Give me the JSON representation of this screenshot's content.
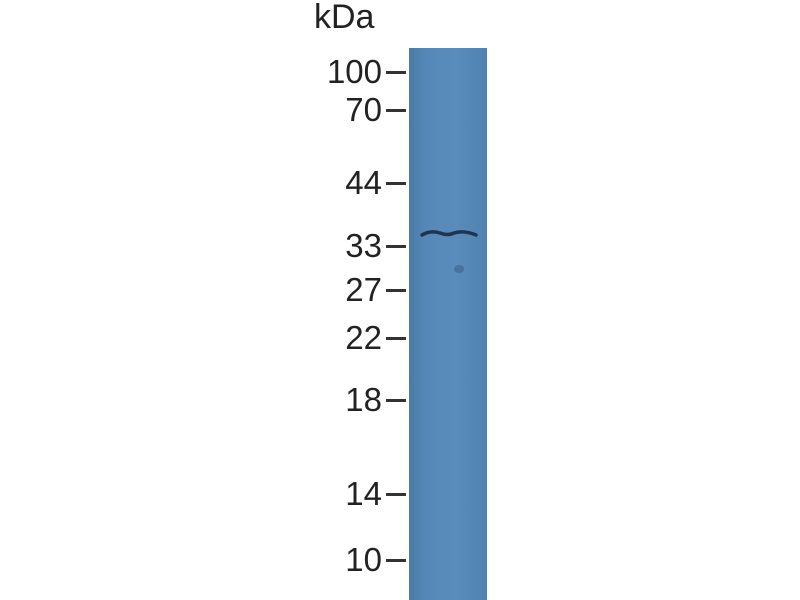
{
  "unit_label": "kDa",
  "markers": [
    {
      "label": "100",
      "kda": 100
    },
    {
      "label": "70",
      "kda": 70
    },
    {
      "label": "44",
      "kda": 44
    },
    {
      "label": "33",
      "kda": 33
    },
    {
      "label": "27",
      "kda": 27
    },
    {
      "label": "22",
      "kda": 22
    },
    {
      "label": "18",
      "kda": 18
    },
    {
      "label": "14",
      "kda": 14
    },
    {
      "label": "10",
      "kda": 10
    }
  ],
  "lane_color": "#5588b8",
  "band": {
    "approx_kda": 35,
    "color": "#1e3550"
  }
}
